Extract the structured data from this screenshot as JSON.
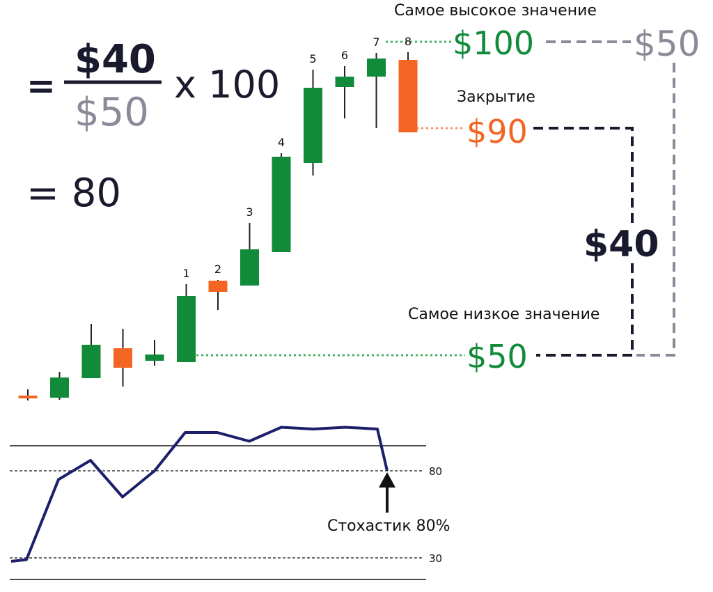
{
  "formula": {
    "equals_sign": "=",
    "numerator": "$40",
    "denominator": "$50",
    "multiplier": "x 100",
    "result": "= 80"
  },
  "labels": {
    "highest": "Самое высокое значение",
    "close": "Закрытие",
    "lowest": "Самое низкое значение",
    "stochastic": "Стохастик 80%"
  },
  "values": {
    "high": "$100",
    "close": "$90",
    "low": "$50",
    "diff_high_low": "$50",
    "diff_close_low": "$40"
  },
  "colors": {
    "up": "#118a3a",
    "down": "#f26522",
    "gray": "#8a8a98",
    "dark": "#1a1a2e",
    "line": "#1c1f6b"
  },
  "chart_data": [
    {
      "type": "candlestick",
      "candles": [
        {
          "label": "",
          "open": 2,
          "close": 2,
          "high": 11,
          "low": -5,
          "dir": "down"
        },
        {
          "label": "",
          "open": -1,
          "close": 28,
          "high": 36,
          "low": -4,
          "dir": "up"
        },
        {
          "label": "",
          "open": 27,
          "close": 75,
          "high": 105,
          "low": 27,
          "dir": "up"
        },
        {
          "label": "",
          "open": 70,
          "close": 42,
          "high": 98,
          "low": 15,
          "dir": "down"
        },
        {
          "label": "",
          "open": 52,
          "close": 61,
          "high": 82,
          "low": 45,
          "dir": "up"
        },
        {
          "label": "1",
          "open": 50,
          "close": 145,
          "high": 162,
          "low": 50,
          "dir": "up"
        },
        {
          "label": "2",
          "open": 167,
          "close": 151,
          "high": 168,
          "low": 125,
          "dir": "down"
        },
        {
          "label": "3",
          "open": 160,
          "close": 212,
          "high": 250,
          "low": 160,
          "dir": "up"
        },
        {
          "label": "4",
          "open": 208,
          "close": 345,
          "high": 350,
          "low": 208,
          "dir": "up"
        },
        {
          "label": "5",
          "open": 336,
          "close": 444,
          "high": 470,
          "low": 318,
          "dir": "up"
        },
        {
          "label": "6",
          "open": 445,
          "close": 460,
          "high": 475,
          "low": 400,
          "dir": "up"
        },
        {
          "label": "7",
          "open": 460,
          "close": 486,
          "high": 494,
          "low": 386,
          "dir": "up"
        },
        {
          "label": "8",
          "open": 484,
          "close": 380,
          "high": 495,
          "low": 380,
          "dir": "down"
        }
      ]
    },
    {
      "type": "line",
      "y_tick_labels": [
        "80",
        "30"
      ],
      "levels": [
        80,
        30
      ],
      "x": [
        1,
        2,
        3,
        4,
        5,
        6,
        7,
        8,
        9,
        10,
        11,
        12,
        13,
        14
      ],
      "y": [
        28,
        29,
        75,
        86,
        65,
        80,
        102,
        102,
        97,
        105,
        104,
        105,
        104,
        80
      ]
    }
  ]
}
